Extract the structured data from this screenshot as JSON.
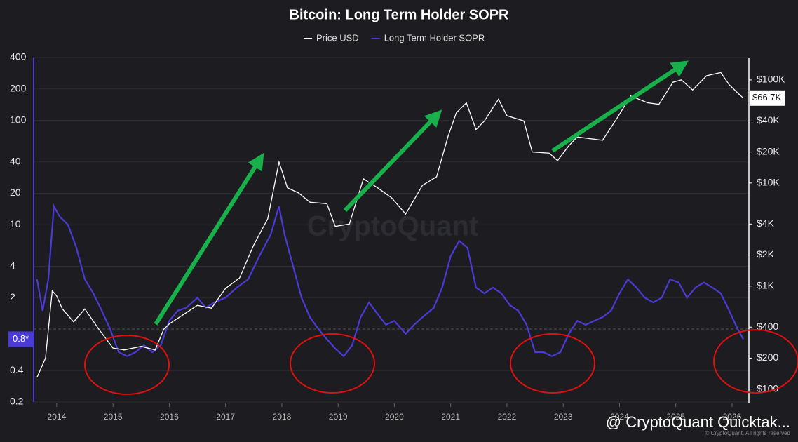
{
  "chart_data": {
    "type": "line",
    "title": "Bitcoin: Long Term Holder SOPR",
    "watermark": "CryptoQuant",
    "footer": "@ CryptoQuant Quicktak...",
    "copyright": "© CryptoQuant. All rights reserved",
    "xlim": [
      2013.59,
      2026.3
    ],
    "xticks": [
      2014,
      2015,
      2016,
      2017,
      2018,
      2019,
      2020,
      2021,
      2022,
      2023,
      2024,
      2025,
      2026
    ],
    "ylim": [
      0.2,
      400
    ],
    "yticks": [
      400,
      200,
      100,
      40,
      20,
      10,
      4,
      2,
      0.4,
      0.2
    ],
    "y2lim": [
      75,
      165000
    ],
    "y2ticks": [
      {
        "value": 100000,
        "label": "$100K"
      },
      {
        "value": 40000,
        "label": "$40K"
      },
      {
        "value": 20000,
        "label": "$20K"
      },
      {
        "value": 10000,
        "label": "$10K"
      },
      {
        "value": 4000,
        "label": "$4K"
      },
      {
        "value": 2000,
        "label": "$2K"
      },
      {
        "value": 1000,
        "label": "$1K"
      },
      {
        "value": 400,
        "label": "$400"
      },
      {
        "value": 200,
        "label": "$200"
      },
      {
        "value": 100,
        "label": "$100"
      }
    ],
    "log_scale": true,
    "grid": true,
    "reference_line": 1,
    "current_labels": [
      {
        "value": 0.8,
        "label": "0.8*",
        "axis": "y"
      },
      {
        "value": 66700,
        "label": "$66.7K",
        "axis": "y2"
      }
    ],
    "series": [
      {
        "name": "Price USD",
        "color": "#ffffff",
        "axis": "y2",
        "x": [
          2013.65,
          2013.8,
          2013.92,
          2014.0,
          2014.1,
          2014.3,
          2014.5,
          2014.75,
          2015.0,
          2015.2,
          2015.5,
          2015.75,
          2015.9,
          2016.0,
          2016.5,
          2016.75,
          2017.0,
          2017.25,
          2017.5,
          2017.75,
          2017.95,
          2018.1,
          2018.3,
          2018.5,
          2018.8,
          2018.95,
          2019.2,
          2019.45,
          2019.7,
          2019.95,
          2020.2,
          2020.5,
          2020.75,
          2020.95,
          2021.1,
          2021.28,
          2021.45,
          2021.6,
          2021.85,
          2022.0,
          2022.3,
          2022.45,
          2022.75,
          2022.9,
          2023.1,
          2023.25,
          2023.7,
          2023.95,
          2024.2,
          2024.5,
          2024.7,
          2024.95,
          2025.1,
          2025.3,
          2025.55,
          2025.8,
          2025.95,
          2026.1,
          2026.2
        ],
        "values": [
          130,
          200,
          900,
          800,
          600,
          450,
          600,
          380,
          250,
          240,
          260,
          240,
          380,
          430,
          650,
          610,
          950,
          1200,
          2500,
          4500,
          16000,
          9000,
          8000,
          6500,
          6300,
          3800,
          4000,
          11000,
          9000,
          7200,
          5000,
          9500,
          11500,
          28000,
          48000,
          60000,
          33000,
          40000,
          65000,
          45000,
          40000,
          20000,
          19500,
          16500,
          23000,
          28000,
          26000,
          42000,
          70000,
          60000,
          58000,
          95000,
          100000,
          80000,
          110000,
          118000,
          90000,
          75000,
          66700
        ]
      },
      {
        "name": "Long Term Holder SOPR",
        "color": "#4b3bd6",
        "axis": "y",
        "x": [
          2013.65,
          2013.75,
          2013.85,
          2013.95,
          2014.05,
          2014.2,
          2014.35,
          2014.5,
          2014.65,
          2014.8,
          2014.95,
          2015.1,
          2015.25,
          2015.4,
          2015.55,
          2015.7,
          2015.85,
          2016.0,
          2016.15,
          2016.3,
          2016.5,
          2016.65,
          2016.8,
          2017.0,
          2017.2,
          2017.4,
          2017.6,
          2017.8,
          2017.95,
          2018.05,
          2018.2,
          2018.35,
          2018.5,
          2018.65,
          2018.8,
          2018.95,
          2019.1,
          2019.25,
          2019.4,
          2019.55,
          2019.7,
          2019.85,
          2020.0,
          2020.2,
          2020.35,
          2020.5,
          2020.7,
          2020.85,
          2021.0,
          2021.15,
          2021.3,
          2021.45,
          2021.6,
          2021.75,
          2021.9,
          2022.05,
          2022.2,
          2022.35,
          2022.5,
          2022.65,
          2022.8,
          2022.95,
          2023.1,
          2023.25,
          2023.4,
          2023.55,
          2023.7,
          2023.85,
          2024.0,
          2024.15,
          2024.3,
          2024.45,
          2024.6,
          2024.75,
          2024.9,
          2025.05,
          2025.2,
          2025.35,
          2025.5,
          2025.65,
          2025.8,
          2025.95,
          2026.1,
          2026.2
        ],
        "values": [
          3,
          1.5,
          3,
          15,
          12,
          10,
          6,
          3,
          2.2,
          1.5,
          1,
          0.6,
          0.55,
          0.6,
          0.7,
          0.6,
          0.7,
          1.2,
          1.5,
          1.6,
          2,
          1.6,
          1.8,
          2,
          2.5,
          3,
          5,
          8,
          15,
          8,
          4,
          2,
          1.3,
          1,
          0.8,
          0.65,
          0.55,
          0.7,
          1.3,
          1.8,
          1.4,
          1.1,
          1.2,
          0.9,
          1.1,
          1.3,
          1.6,
          2.5,
          5,
          7,
          6,
          2.5,
          2.2,
          2.5,
          2.2,
          1.7,
          1.5,
          1.1,
          0.6,
          0.6,
          0.55,
          0.6,
          0.9,
          1.2,
          1.1,
          1.2,
          1.3,
          1.5,
          2.2,
          3,
          2.5,
          2,
          1.8,
          2,
          3,
          2.8,
          2,
          2.5,
          2.8,
          2.5,
          2.2,
          1.5,
          1,
          0.8
        ]
      }
    ]
  }
}
